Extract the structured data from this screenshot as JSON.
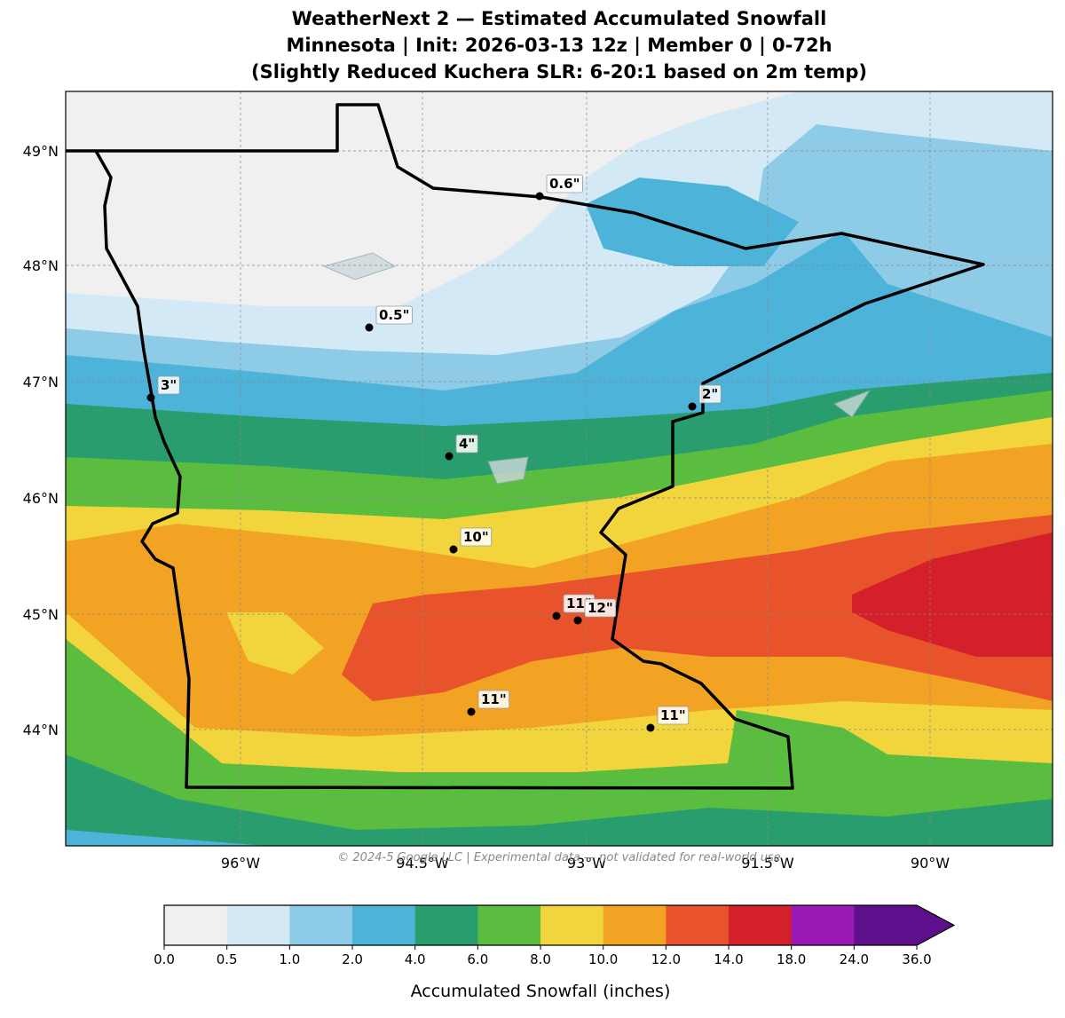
{
  "title": [
    "WeatherNext 2 — Estimated Accumulated Snowfall",
    "Minnesota | Init: 2026-03-13 12z | Member 0 | 0-72h",
    "(Slightly Reduced Kuchera SLR: 6-20:1 based on 2m temp)"
  ],
  "lat_labels": [
    "49°N",
    "48°N",
    "47°N",
    "46°N",
    "45°N",
    "44°N"
  ],
  "lon_labels": [
    "96°W",
    "94.5°W",
    "93°W",
    "91.5°W",
    "90°W"
  ],
  "points": [
    "0.6\"",
    "0.5\"",
    "3\"",
    "2\"",
    "4\"",
    "10\"",
    "11\"",
    "12\"",
    "11\"",
    "11\""
  ],
  "watermark": "© 2024-5 Google LLC | Experimental data — not validated for real-world use",
  "colorbar": {
    "label": "Accumulated Snowfall (inches)",
    "ticks": [
      "0.0",
      "0.5",
      "1.0",
      "2.0",
      "4.0",
      "6.0",
      "8.0",
      "10.0",
      "12.0",
      "14.0",
      "18.0",
      "24.0",
      "36.0"
    ],
    "colors": [
      "#f0f0f0",
      "#d4e9f6",
      "#8ecbe6",
      "#4db3d9",
      "#2a9d6e",
      "#5bbd40",
      "#f2d53c",
      "#f3a324",
      "#e8532c",
      "#d4202a",
      "#9a1ab8",
      "#5e0f8c"
    ]
  }
}
